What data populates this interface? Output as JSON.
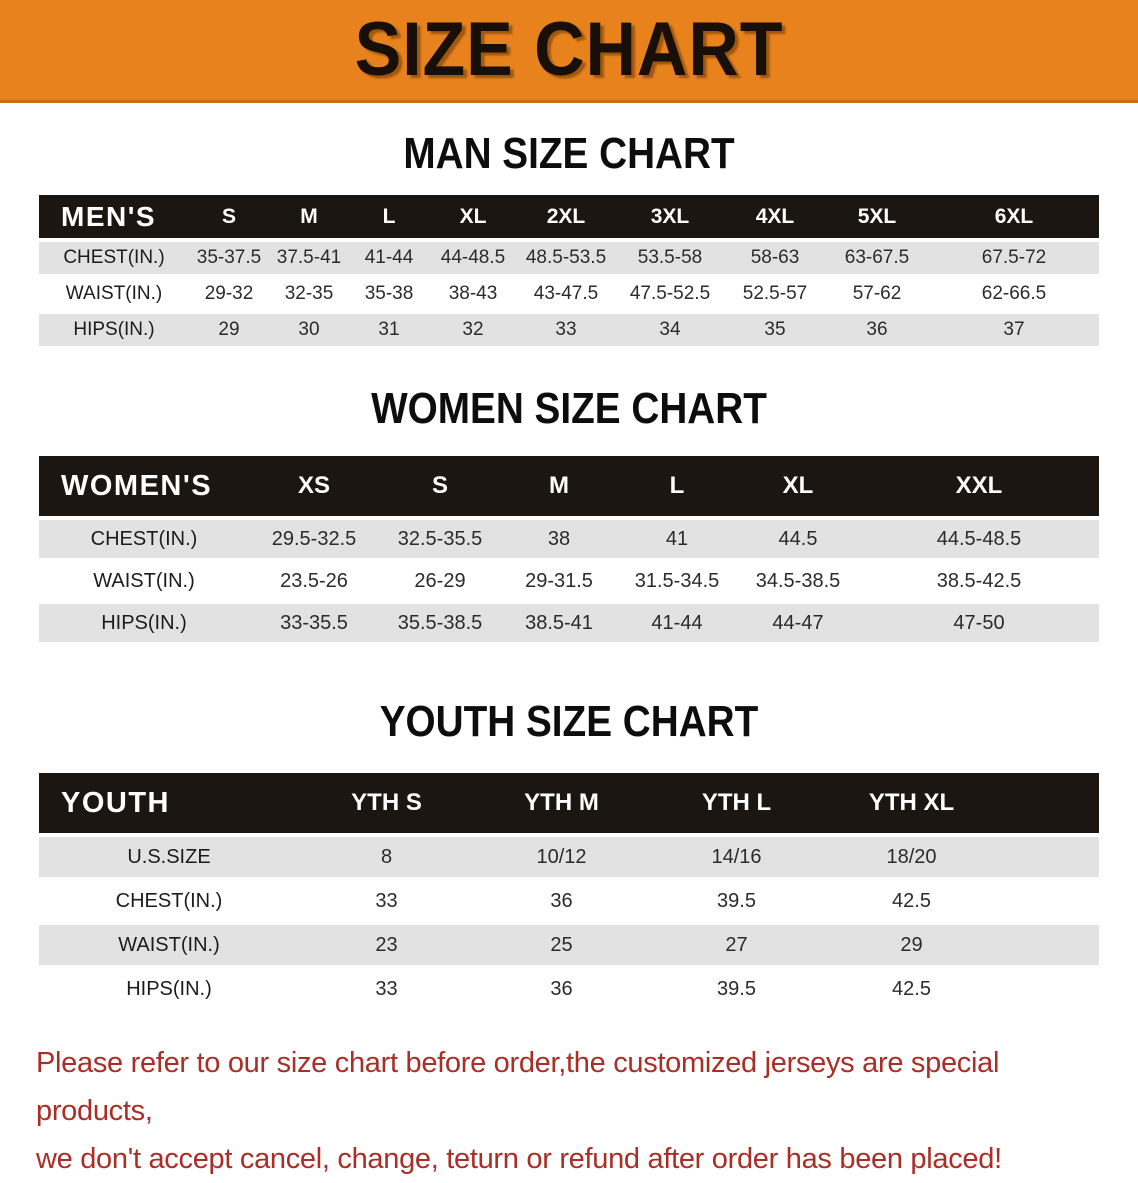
{
  "banner": {
    "title": "SIZE CHART"
  },
  "colors": {
    "banner_bg": "#e8821c",
    "banner_border": "#cc6b12",
    "header_bar": "#1b1612",
    "row_stripe": "#e2e2e2",
    "disclaimer": "#aa2d26"
  },
  "sections": [
    {
      "heading": "MAN SIZE CHART",
      "table": {
        "header": [
          "MEN'S",
          "S",
          "M",
          "L",
          "XL",
          "2XL",
          "3XL",
          "4XL",
          "5XL",
          "6XL"
        ],
        "rows": [
          {
            "label": "CHEST(IN.)",
            "values": [
              "35-37.5",
              "37.5-41",
              "41-44",
              "44-48.5",
              "48.5-53.5",
              "53.5-58",
              "58-63",
              "63-67.5",
              "67.5-72"
            ]
          },
          {
            "label": "WAIST(IN.)",
            "values": [
              "29-32",
              "32-35",
              "35-38",
              "38-43",
              "43-47.5",
              "47.5-52.5",
              "52.5-57",
              "57-62",
              "62-66.5"
            ]
          },
          {
            "label": "HIPS(IN.)",
            "values": [
              "29",
              "30",
              "31",
              "32",
              "33",
              "34",
              "35",
              "36",
              "37"
            ]
          }
        ]
      }
    },
    {
      "heading": "WOMEN SIZE CHART",
      "table": {
        "header": [
          "WOMEN'S",
          "XS",
          "S",
          "M",
          "L",
          "XL",
          "XXL"
        ],
        "rows": [
          {
            "label": "CHEST(IN.)",
            "values": [
              "29.5-32.5",
              "32.5-35.5",
              "38",
              "41",
              "44.5",
              "44.5-48.5"
            ]
          },
          {
            "label": "WAIST(IN.)",
            "values": [
              "23.5-26",
              "26-29",
              "29-31.5",
              "31.5-34.5",
              "34.5-38.5",
              "38.5-42.5"
            ]
          },
          {
            "label": "HIPS(IN.)",
            "values": [
              "33-35.5",
              "35.5-38.5",
              "38.5-41",
              "41-44",
              "44-47",
              "47-50"
            ]
          }
        ]
      }
    },
    {
      "heading": "YOUTH SIZE CHART",
      "table": {
        "header": [
          "YOUTH",
          "YTH S",
          "YTH M",
          "YTH L",
          "YTH XL"
        ],
        "rows": [
          {
            "label": "U.S.SIZE",
            "values": [
              "8",
              "10/12",
              "14/16",
              "18/20"
            ]
          },
          {
            "label": "CHEST(IN.)",
            "values": [
              "33",
              "36",
              "39.5",
              "42.5"
            ]
          },
          {
            "label": "WAIST(IN.)",
            "values": [
              "23",
              "25",
              "27",
              "29"
            ]
          },
          {
            "label": "HIPS(IN.)",
            "values": [
              "33",
              "36",
              "39.5",
              "42.5"
            ]
          }
        ]
      }
    }
  ],
  "disclaimer": {
    "line1": "Please refer to our size chart before order,the customized jerseys are special products,",
    "line2": "we don't accept cancel, change, teturn or refund after order has been placed!"
  }
}
